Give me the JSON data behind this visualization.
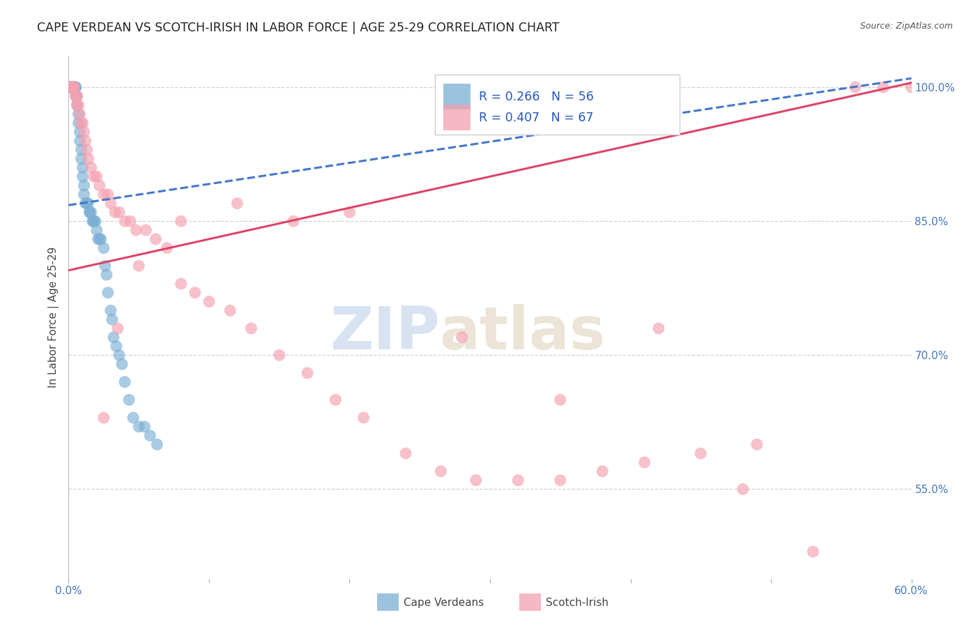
{
  "title": "CAPE VERDEAN VS SCOTCH-IRISH IN LABOR FORCE | AGE 25-29 CORRELATION CHART",
  "source": "Source: ZipAtlas.com",
  "ylabel": "In Labor Force | Age 25-29",
  "xlim": [
    0.0,
    0.6
  ],
  "ylim": [
    0.45,
    1.035
  ],
  "ytick_positions": [
    1.0,
    0.85,
    0.7,
    0.55
  ],
  "yticklabels": [
    "100.0%",
    "85.0%",
    "70.0%",
    "55.0%"
  ],
  "background_color": "#ffffff",
  "grid_color": "#d0d0d0",
  "blue_color": "#7bafd4",
  "pink_color": "#f4a0b0",
  "trendline_blue": "#4477cc",
  "trendline_pink": "#dd4466",
  "watermark_zip": "ZIP",
  "watermark_atlas": "atlas",
  "legend_r1": "R = 0.266",
  "legend_n1": "N = 56",
  "legend_r2": "R = 0.407",
  "legend_n2": "N = 67",
  "blue_trend_x0": 0.0,
  "blue_trend_y0": 0.868,
  "blue_trend_x1": 0.6,
  "blue_trend_y1": 1.01,
  "pink_trend_x0": 0.0,
  "pink_trend_y0": 0.795,
  "pink_trend_x1": 0.6,
  "pink_trend_y1": 1.005,
  "cape_verdean_x": [
    0.001,
    0.001,
    0.002,
    0.002,
    0.003,
    0.003,
    0.003,
    0.004,
    0.004,
    0.004,
    0.005,
    0.005,
    0.005,
    0.006,
    0.006,
    0.007,
    0.007,
    0.008,
    0.008,
    0.009,
    0.009,
    0.01,
    0.01,
    0.011,
    0.011,
    0.012,
    0.013,
    0.014,
    0.015,
    0.015,
    0.016,
    0.017,
    0.018,
    0.018,
    0.019,
    0.02,
    0.021,
    0.022,
    0.023,
    0.025,
    0.026,
    0.027,
    0.028,
    0.03,
    0.031,
    0.032,
    0.034,
    0.036,
    0.038,
    0.04,
    0.043,
    0.046,
    0.05,
    0.054,
    0.058,
    0.063
  ],
  "cape_verdean_y": [
    1.0,
    1.0,
    1.0,
    1.0,
    1.0,
    1.0,
    1.0,
    1.0,
    1.0,
    1.0,
    1.0,
    1.0,
    1.0,
    0.99,
    0.98,
    0.97,
    0.96,
    0.95,
    0.94,
    0.93,
    0.92,
    0.91,
    0.9,
    0.89,
    0.88,
    0.87,
    0.87,
    0.87,
    0.86,
    0.86,
    0.86,
    0.85,
    0.85,
    0.85,
    0.85,
    0.84,
    0.83,
    0.83,
    0.83,
    0.82,
    0.8,
    0.79,
    0.77,
    0.75,
    0.74,
    0.72,
    0.71,
    0.7,
    0.69,
    0.67,
    0.65,
    0.63,
    0.62,
    0.62,
    0.61,
    0.6
  ],
  "scotch_irish_x": [
    0.001,
    0.002,
    0.002,
    0.003,
    0.003,
    0.004,
    0.004,
    0.005,
    0.005,
    0.006,
    0.006,
    0.007,
    0.008,
    0.009,
    0.01,
    0.011,
    0.012,
    0.013,
    0.014,
    0.016,
    0.018,
    0.02,
    0.022,
    0.025,
    0.028,
    0.03,
    0.033,
    0.036,
    0.04,
    0.044,
    0.048,
    0.055,
    0.062,
    0.07,
    0.08,
    0.09,
    0.1,
    0.115,
    0.13,
    0.15,
    0.17,
    0.19,
    0.21,
    0.24,
    0.265,
    0.29,
    0.32,
    0.35,
    0.38,
    0.41,
    0.45,
    0.49,
    0.53,
    0.56,
    0.58,
    0.6,
    0.2,
    0.16,
    0.12,
    0.08,
    0.05,
    0.035,
    0.025,
    0.28,
    0.35,
    0.42,
    0.48
  ],
  "scotch_irish_y": [
    1.0,
    1.0,
    1.0,
    1.0,
    1.0,
    1.0,
    1.0,
    0.99,
    0.99,
    0.99,
    0.98,
    0.98,
    0.97,
    0.96,
    0.96,
    0.95,
    0.94,
    0.93,
    0.92,
    0.91,
    0.9,
    0.9,
    0.89,
    0.88,
    0.88,
    0.87,
    0.86,
    0.86,
    0.85,
    0.85,
    0.84,
    0.84,
    0.83,
    0.82,
    0.78,
    0.77,
    0.76,
    0.75,
    0.73,
    0.7,
    0.68,
    0.65,
    0.63,
    0.59,
    0.57,
    0.56,
    0.56,
    0.56,
    0.57,
    0.58,
    0.59,
    0.6,
    0.48,
    1.0,
    1.0,
    1.0,
    0.86,
    0.85,
    0.87,
    0.85,
    0.8,
    0.73,
    0.63,
    0.72,
    0.65,
    0.73,
    0.55
  ]
}
